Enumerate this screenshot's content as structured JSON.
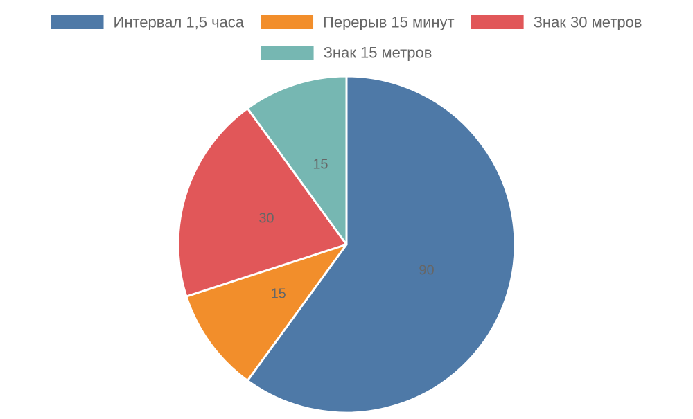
{
  "chart_data": {
    "type": "pie",
    "title": "",
    "legend_position": "top",
    "slices": [
      {
        "label": "Интервал 1,5 часа",
        "value": 90,
        "color": "#4e79a7"
      },
      {
        "label": "Перерыв 15 минут",
        "value": 15,
        "color": "#f28e2b"
      },
      {
        "label": "Знак 30 метров",
        "value": 30,
        "color": "#e15759"
      },
      {
        "label": "Знак 15 метров",
        "value": 15,
        "color": "#76b7b2"
      }
    ],
    "data_labels_shown": true,
    "slice_border_color": "#ffffff",
    "label_text_color": "#666666",
    "legend_text_color": "#666666"
  }
}
